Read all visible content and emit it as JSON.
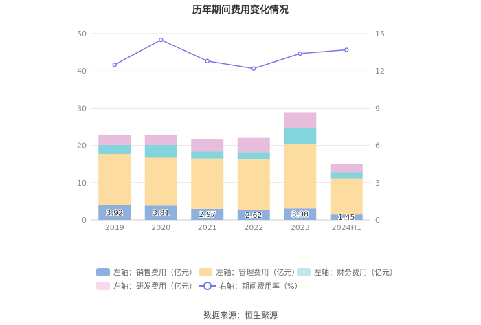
{
  "chart_data": {
    "type": "bar",
    "title": "历年期间费用变化情况",
    "categories": [
      "2019",
      "2020",
      "2021",
      "2022",
      "2023",
      "2024H1"
    ],
    "left_axis": {
      "min": 0,
      "max": 50,
      "ticks": [
        0,
        10,
        20,
        30,
        40,
        50
      ]
    },
    "right_axis": {
      "min": 0,
      "max": 15,
      "ticks": [
        0,
        3,
        6,
        9,
        12,
        15
      ]
    },
    "stacked_series": [
      {
        "name": "左轴：销售费用（亿元）",
        "color": "#8eb0dd",
        "values": [
          3.92,
          3.81,
          2.97,
          2.62,
          3.08,
          1.45
        ],
        "show_labels": true
      },
      {
        "name": "左轴：管理费用（亿元）",
        "color": "#fddc9f",
        "values": [
          13.8,
          12.9,
          13.5,
          13.6,
          17.2,
          9.7
        ],
        "show_labels": false
      },
      {
        "name": "左轴：财务费用（亿元）",
        "color": "#84d4dc",
        "values": [
          2.4,
          3.4,
          1.9,
          2.0,
          4.4,
          1.5
        ],
        "show_labels": false
      },
      {
        "name": "左轴：研发费用（亿元）",
        "color": "#e8bcdc",
        "values": [
          2.6,
          2.6,
          3.2,
          3.8,
          4.2,
          2.4
        ],
        "show_labels": false
      }
    ],
    "line_series": {
      "name": "右轴：期间费用率（%）",
      "color": "#7778e8",
      "values": [
        12.5,
        14.5,
        12.8,
        12.2,
        13.4,
        13.7
      ]
    }
  },
  "legend": {
    "row1": [
      "左轴：销售费用（亿元）",
      "左轴：管理费用（亿元）",
      "左轴：财务费用（亿元）"
    ],
    "row2": [
      "左轴：研发费用（亿元）",
      "右轴：期间费用率（%）"
    ]
  },
  "source": "数据来源：恒生聚源"
}
